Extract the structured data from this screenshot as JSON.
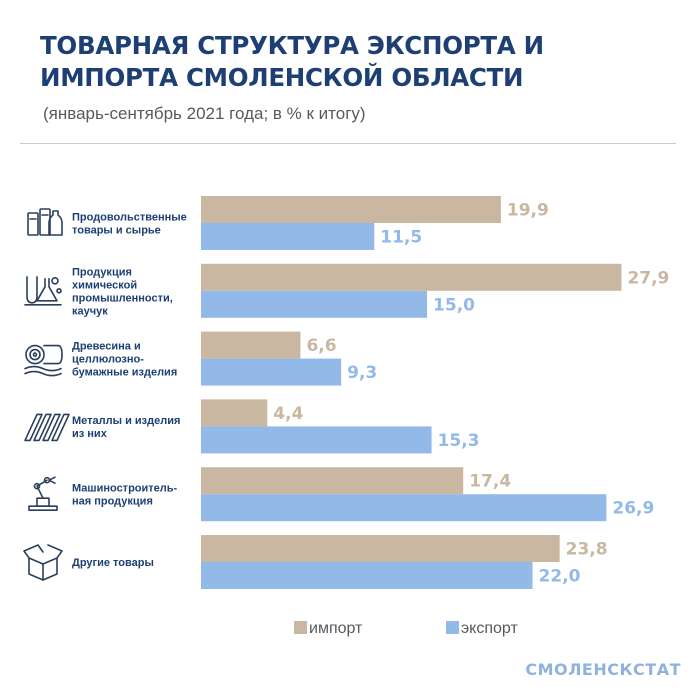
{
  "header": {
    "title": "ТОВАРНАЯ СТРУКТУРА ЭКСПОРТА И ИМПОРТА СМОЛЕНСКОЙ ОБЛАСТИ",
    "subtitle": "(январь-сентябрь 2021 года; в % к итогу)"
  },
  "footer": {
    "brand": "СМОЛЕНСКСТАТ"
  },
  "colors": {
    "import": "#c9b7a1",
    "export": "#92b9e8",
    "text": "#1d3f73",
    "icon": "#2a3f5c"
  },
  "chart_data": {
    "type": "bar",
    "orientation": "horizontal",
    "categories": [
      [
        "Продовольственные",
        "товары и сырье"
      ],
      [
        "Продукция",
        "химической",
        "промышленности,",
        "каучук"
      ],
      [
        "Древесина и",
        "целлюлозно-",
        "бумажные изделия"
      ],
      [
        "Металлы и изделия",
        "из них"
      ],
      [
        "Машиностроитель-",
        "ная продукция"
      ],
      [
        "Другие товары"
      ]
    ],
    "icons": [
      "food-icon",
      "chemistry-icon",
      "wood-icon",
      "metal-icon",
      "machinery-icon",
      "box-icon"
    ],
    "series": [
      {
        "name": "импорт",
        "values": [
          19.9,
          27.9,
          6.6,
          4.4,
          17.4,
          23.8
        ],
        "labels": [
          "19,9",
          "27,9",
          "6,6",
          "4,4",
          "17,4",
          "23,8"
        ]
      },
      {
        "name": "экспорт",
        "values": [
          11.5,
          15.0,
          9.3,
          15.3,
          26.9,
          22.0
        ],
        "labels": [
          "11,5",
          "15,0",
          "9,3",
          "15,3",
          "26,9",
          "22,0"
        ]
      }
    ],
    "legend_position": "bottom",
    "grid": false
  }
}
